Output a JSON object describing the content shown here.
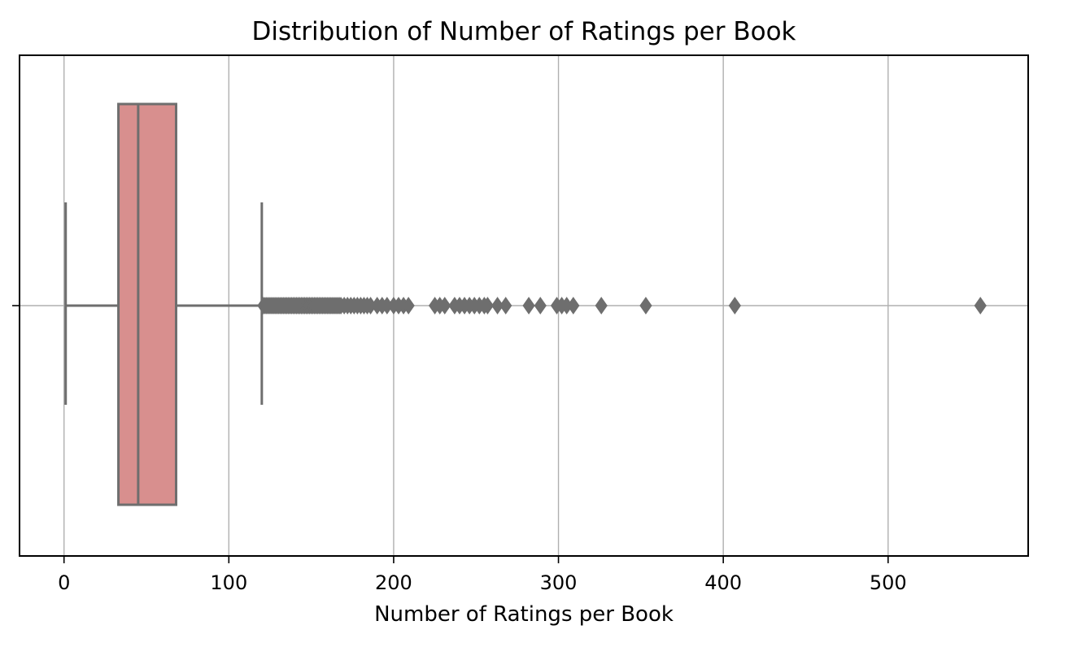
{
  "chart_data": {
    "type": "box",
    "title": "Distribution of Number of Ratings per Book",
    "xlabel": "Number of Ratings per Book",
    "ylabel": "",
    "xlim": [
      -27,
      585
    ],
    "xticks": [
      0,
      100,
      200,
      300,
      400,
      500
    ],
    "xtick_labels": [
      "0",
      "100",
      "200",
      "300",
      "400",
      "500"
    ],
    "grid": true,
    "orientation": "horizontal",
    "box": {
      "whisker_low": 1,
      "q1": 33,
      "median": 45,
      "q3": 68,
      "whisker_high": 120,
      "outliers": [
        121,
        122,
        123,
        124,
        125,
        126,
        127,
        128,
        129,
        130,
        131,
        132,
        133,
        134,
        135,
        136,
        137,
        138,
        139,
        140,
        141,
        142,
        143,
        144,
        145,
        146,
        147,
        148,
        149,
        150,
        151,
        152,
        153,
        154,
        155,
        156,
        157,
        158,
        159,
        160,
        161,
        162,
        163,
        164,
        165,
        166,
        167,
        168,
        170,
        172,
        174,
        176,
        178,
        180,
        182,
        184,
        186,
        190,
        193,
        196,
        200,
        203,
        206,
        209,
        225,
        228,
        231,
        237,
        240,
        243,
        246,
        249,
        252,
        255,
        257,
        263,
        268,
        282,
        289,
        299,
        302,
        305,
        309,
        326,
        353,
        407,
        556
      ]
    },
    "colors": {
      "box_fill": "#d88f8e",
      "box_edge": "#6e6e6e",
      "grid": "#b0b0b0",
      "frame": "#000000"
    }
  }
}
